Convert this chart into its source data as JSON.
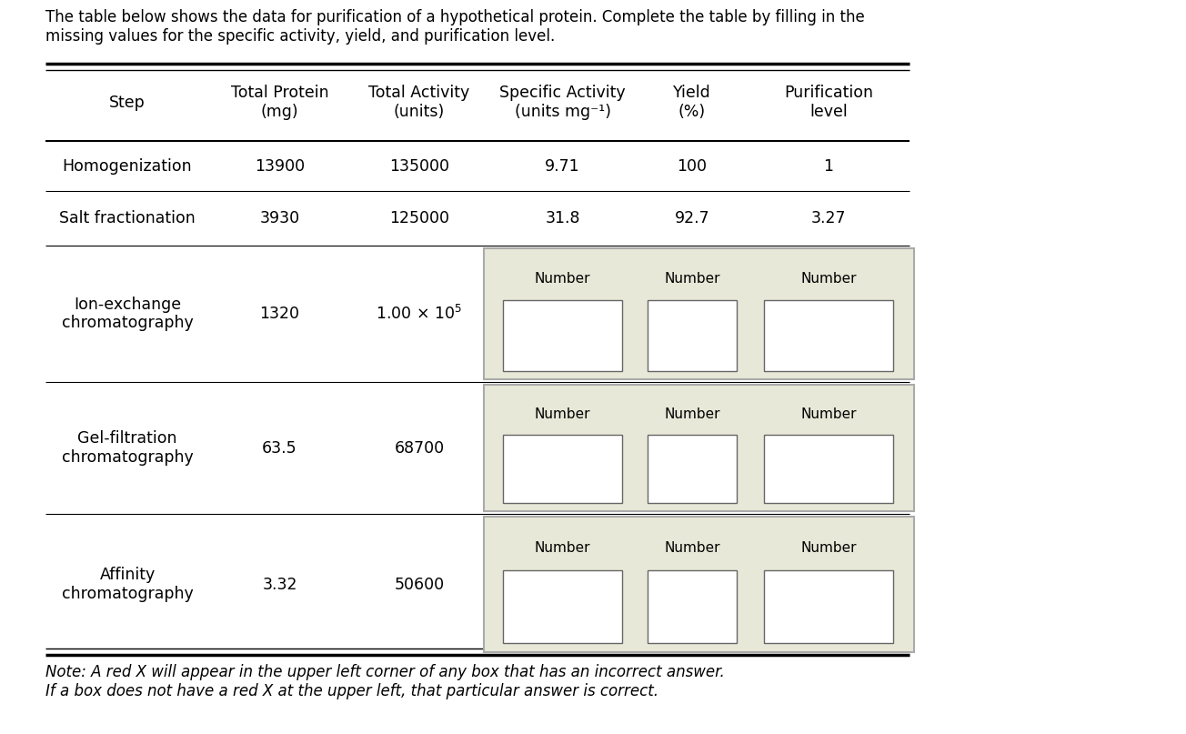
{
  "title_text": "The table below shows the data for purification of a hypothetical protein. Complete the table by filling in the\nmissing values for the specific activity, yield, and purification level.",
  "note_text": "Note: A red X will appear in the upper left corner of any box that has an incorrect answer.\nIf a box does not have a red X at the upper left, that particular answer is correct.",
  "col_headers": [
    "Step",
    "Total Protein\n(mg)",
    "Total Activity\n(units)",
    "Specific Activity\n(units mg⁻¹)",
    "Yield\n(%)",
    "Purification\nlevel"
  ],
  "rows": [
    {
      "step": "Homogenization",
      "protein": "13900",
      "activity": "135000",
      "sa": "9.71",
      "yield": "100",
      "pur": "1",
      "missing": false
    },
    {
      "step": "Salt fractionation",
      "protein": "3930",
      "activity": "125000",
      "sa": "31.8",
      "yield": "92.7",
      "pur": "3.27",
      "missing": false
    },
    {
      "step": "Ion-exchange\nchromatography",
      "protein": "1320",
      "activity": "1.00_x_10_5",
      "sa": "",
      "yield": "",
      "pur": "",
      "missing": true
    },
    {
      "step": "Gel-filtration\nchromatography",
      "protein": "63.5",
      "activity": "68700",
      "sa": "",
      "yield": "",
      "pur": "",
      "missing": true
    },
    {
      "step": "Affinity\nchromatography",
      "protein": "3.32",
      "activity": "50600",
      "sa": "",
      "yield": "",
      "pur": "",
      "missing": true
    }
  ],
  "bg": "#ffffff",
  "shade_bg": "#e8e8d8",
  "shade_border": "#aaaaaa",
  "box_bg": "#ffffff",
  "box_border": "#666666",
  "black": "#000000",
  "font_size": 12.5,
  "header_font_size": 12.5,
  "note_font_size": 12.0,
  "title_font_size": 12.0
}
